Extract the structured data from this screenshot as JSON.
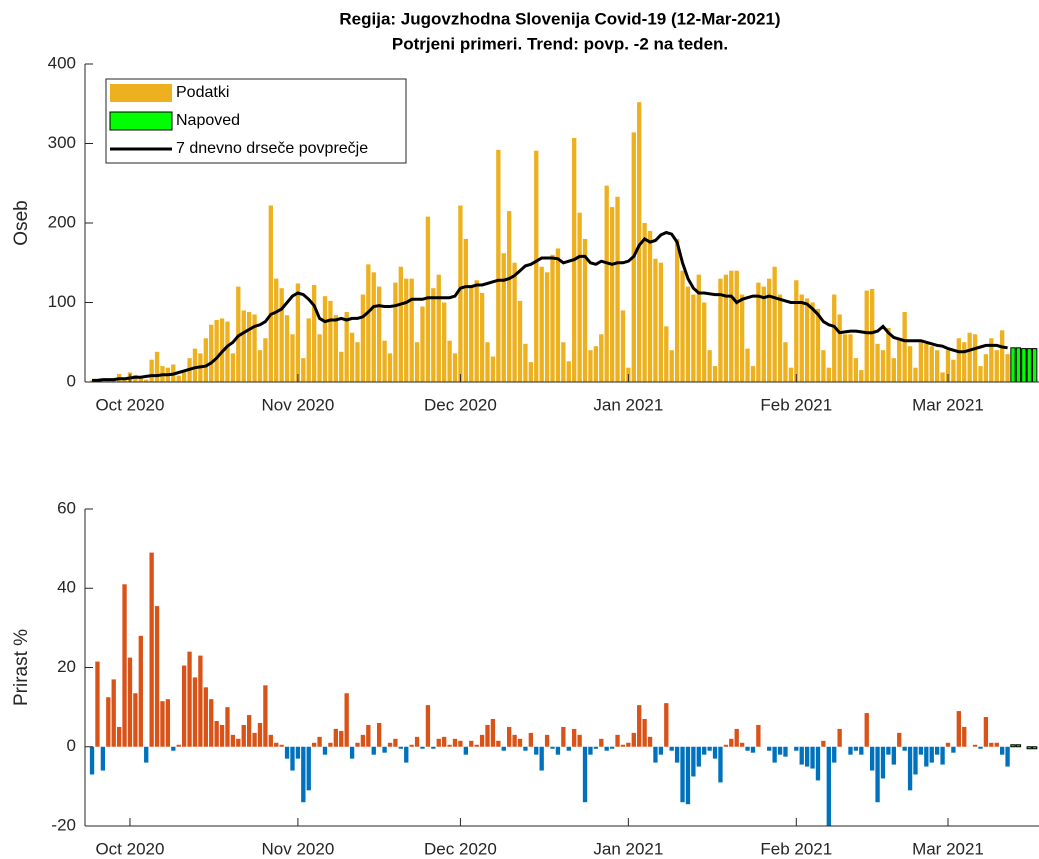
{
  "chart_data": [
    {
      "type": "bar",
      "title": "Regija: Jugovzhodna Slovenija Covid-19 (12-Mar-2021)",
      "subtitle": "Potrjeni primeri. Trend: povp. -2 na teden.",
      "y_label": "Oseb",
      "legend": "northwest",
      "xlim": [
        -8.3,
        167.8
      ],
      "xticks": [
        {
          "value": 0,
          "label": "Oct 2020"
        },
        {
          "value": 31,
          "label": "Nov 2020"
        },
        {
          "value": 61,
          "label": "Dec 2020"
        },
        {
          "value": 92,
          "label": "Jan 2021"
        },
        {
          "value": 123,
          "label": "Feb 2021"
        },
        {
          "value": 151,
          "label": "Mar 2021"
        }
      ],
      "ylim": [
        0,
        400
      ],
      "yticks": [
        0,
        100,
        200,
        300,
        400
      ],
      "x": [
        -7,
        -6,
        -5,
        -4,
        -3,
        -2,
        -1,
        0,
        1,
        2,
        3,
        4,
        5,
        6,
        7,
        8,
        9,
        10,
        11,
        12,
        13,
        14,
        15,
        16,
        17,
        18,
        19,
        20,
        21,
        22,
        23,
        24,
        25,
        26,
        27,
        28,
        29,
        30,
        31,
        32,
        33,
        34,
        35,
        36,
        37,
        38,
        39,
        40,
        41,
        42,
        43,
        44,
        45,
        46,
        47,
        48,
        49,
        50,
        51,
        52,
        53,
        54,
        55,
        56,
        57,
        58,
        59,
        60,
        61,
        62,
        63,
        64,
        65,
        66,
        67,
        68,
        69,
        70,
        71,
        72,
        73,
        74,
        75,
        76,
        77,
        78,
        79,
        80,
        81,
        82,
        83,
        84,
        85,
        86,
        87,
        88,
        89,
        90,
        91,
        92,
        93,
        94,
        95,
        96,
        97,
        98,
        99,
        100,
        101,
        102,
        103,
        104,
        105,
        106,
        107,
        108,
        109,
        110,
        111,
        112,
        113,
        114,
        115,
        116,
        117,
        118,
        119,
        120,
        121,
        122,
        123,
        124,
        125,
        126,
        127,
        128,
        129,
        130,
        131,
        132,
        133,
        134,
        135,
        136,
        137,
        138,
        139,
        140,
        141,
        142,
        143,
        144,
        145,
        146,
        147,
        148,
        149,
        150,
        151,
        152,
        153,
        154,
        155,
        156,
        157,
        158,
        159,
        160,
        161,
        162
      ],
      "series": [
        {
          "name": "Podatki",
          "type": "bar",
          "color": "#edb120",
          "values": [
            2,
            3,
            1,
            2,
            4,
            10,
            5,
            12,
            9,
            6,
            3,
            28,
            38,
            20,
            18,
            22,
            8,
            14,
            30,
            42,
            36,
            55,
            72,
            78,
            80,
            76,
            36,
            120,
            90,
            88,
            85,
            40,
            55,
            222,
            130,
            118,
            84,
            60,
            124,
            30,
            80,
            122,
            60,
            108,
            102,
            84,
            38,
            88,
            62,
            50,
            110,
            148,
            138,
            120,
            52,
            36,
            125,
            145,
            130,
            130,
            50,
            95,
            208,
            118,
            135,
            100,
            52,
            36,
            222,
            180,
            120,
            128,
            112,
            50,
            32,
            292,
            162,
            215,
            150,
            102,
            48,
            25,
            291,
            145,
            138,
            160,
            168,
            50,
            26,
            307,
            213,
            180,
            40,
            45,
            60,
            247,
            220,
            233,
            90,
            18,
            314,
            352,
            200,
            190,
            155,
            150,
            70,
            40,
            180,
            140,
            120,
            110,
            135,
            100,
            40,
            20,
            130,
            135,
            140,
            140,
            110,
            42,
            20,
            125,
            120,
            130,
            145,
            110,
            50,
            18,
            128,
            110,
            105,
            100,
            92,
            40,
            18,
            110,
            85,
            60,
            60,
            30,
            15,
            115,
            117,
            48,
            40,
            68,
            30,
            55,
            88,
            45,
            18,
            50,
            48,
            45,
            40,
            12,
            40,
            28,
            55,
            50,
            62,
            60,
            20,
            35,
            55,
            40,
            65,
            35
          ]
        },
        {
          "name": "Napoved",
          "type": "bar",
          "color": "#00ff00",
          "x": [
            163,
            164,
            165,
            166,
            167
          ],
          "values": [
            43,
            43,
            42,
            42,
            42
          ]
        },
        {
          "name": "7 dnevno drseče povprečje",
          "type": "line",
          "color": "#000000",
          "values": [
            2,
            2,
            3,
            3,
            3,
            4,
            4,
            5,
            6,
            6,
            7,
            8,
            8,
            9,
            9,
            10,
            12,
            14,
            16,
            18,
            19,
            20,
            24,
            30,
            38,
            45,
            50,
            58,
            62,
            66,
            70,
            72,
            76,
            85,
            88,
            92,
            100,
            108,
            112,
            110,
            104,
            96,
            80,
            76,
            78,
            78,
            80,
            78,
            80,
            80,
            82,
            88,
            95,
            96,
            95,
            95,
            96,
            98,
            100,
            104,
            104,
            104,
            106,
            106,
            106,
            106,
            106,
            108,
            118,
            120,
            120,
            122,
            122,
            124,
            126,
            128,
            128,
            130,
            134,
            140,
            146,
            148,
            152,
            156,
            156,
            156,
            155,
            150,
            152,
            154,
            158,
            158,
            150,
            148,
            152,
            150,
            148,
            150,
            150,
            152,
            158,
            172,
            180,
            176,
            178,
            185,
            188,
            186,
            176,
            150,
            130,
            118,
            112,
            112,
            111,
            110,
            110,
            108,
            108,
            100,
            104,
            106,
            108,
            108,
            106,
            108,
            106,
            104,
            102,
            100,
            100,
            100,
            98,
            92,
            85,
            76,
            72,
            70,
            62,
            63,
            64,
            64,
            63,
            62,
            62,
            64,
            70,
            62,
            56,
            54,
            52,
            52,
            52,
            52,
            50,
            48,
            46,
            45,
            42,
            40,
            38,
            38,
            40,
            42,
            44,
            46,
            46,
            46,
            44,
            43
          ]
        }
      ]
    },
    {
      "type": "bar",
      "y_label": "Prirast %",
      "xlim": [
        -8.3,
        167.8
      ],
      "xticks": [
        {
          "value": 0,
          "label": "Oct 2020"
        },
        {
          "value": 31,
          "label": "Nov 2020"
        },
        {
          "value": 61,
          "label": "Dec 2020"
        },
        {
          "value": 92,
          "label": "Jan 2021"
        },
        {
          "value": 123,
          "label": "Feb 2021"
        },
        {
          "value": 151,
          "label": "Mar 2021"
        }
      ],
      "ylim": [
        -20,
        60
      ],
      "yticks": [
        -20,
        0,
        20,
        40,
        60
      ],
      "x": [
        -7,
        -6,
        -5,
        -4,
        -3,
        -2,
        -1,
        0,
        1,
        2,
        3,
        4,
        5,
        6,
        7,
        8,
        9,
        10,
        11,
        12,
        13,
        14,
        15,
        16,
        17,
        18,
        19,
        20,
        21,
        22,
        23,
        24,
        25,
        26,
        27,
        28,
        29,
        30,
        31,
        32,
        33,
        34,
        35,
        36,
        37,
        38,
        39,
        40,
        41,
        42,
        43,
        44,
        45,
        46,
        47,
        48,
        49,
        50,
        51,
        52,
        53,
        54,
        55,
        56,
        57,
        58,
        59,
        60,
        61,
        62,
        63,
        64,
        65,
        66,
        67,
        68,
        69,
        70,
        71,
        72,
        73,
        74,
        75,
        76,
        77,
        78,
        79,
        80,
        81,
        82,
        83,
        84,
        85,
        86,
        87,
        88,
        89,
        90,
        91,
        92,
        93,
        94,
        95,
        96,
        97,
        98,
        99,
        100,
        101,
        102,
        103,
        104,
        105,
        106,
        107,
        108,
        109,
        110,
        111,
        112,
        113,
        114,
        115,
        116,
        117,
        118,
        119,
        120,
        121,
        122,
        123,
        124,
        125,
        126,
        127,
        128,
        129,
        130,
        131,
        132,
        133,
        134,
        135,
        136,
        137,
        138,
        139,
        140,
        141,
        142,
        143,
        144,
        145,
        146,
        147,
        148,
        149,
        150,
        151,
        152,
        153,
        154,
        155,
        156,
        157,
        158,
        159,
        160,
        161,
        162
      ],
      "series": [
        {
          "type": "bar",
          "positive_color": "#d95319",
          "negative_color": "#0072bd",
          "values": [
            -7,
            21.5,
            -6,
            12.5,
            17,
            5,
            41,
            22.5,
            13.5,
            28,
            -4,
            49,
            35.5,
            11.5,
            12,
            -1,
            0.5,
            20.5,
            24,
            17.5,
            23,
            15,
            12,
            6.5,
            5.5,
            10,
            3,
            2,
            5.5,
            8,
            3.5,
            6,
            15.5,
            3,
            1,
            0.5,
            -3,
            -6,
            -3,
            -14,
            -11,
            1,
            2.5,
            -2,
            1,
            4.5,
            4,
            13.5,
            -3,
            1,
            3,
            5.5,
            -2,
            6,
            -1.5,
            1,
            2,
            -0.5,
            -4,
            0.5,
            2.5,
            -0.5,
            10.5,
            -0.5,
            2,
            2.5,
            0.5,
            2,
            1.5,
            -2,
            1.5,
            0.5,
            3,
            5.5,
            7,
            1.5,
            -1,
            5,
            3,
            2,
            -1,
            3.5,
            -2,
            -6,
            3,
            -0.5,
            -2,
            5,
            -1,
            4.5,
            3,
            -14,
            -2,
            -0.5,
            2,
            -1,
            -0.5,
            3,
            0.5,
            1,
            3.5,
            10.5,
            7,
            2.5,
            -4,
            -2,
            11,
            -1,
            -4,
            -14,
            -14.5,
            -7.5,
            -5,
            -2,
            -1,
            -3,
            -9,
            0.5,
            2,
            4.5,
            1,
            -1,
            -1.5,
            5.5,
            0,
            -1,
            -4,
            -2,
            -2.5,
            0,
            -1,
            -4.5,
            -5,
            -5.5,
            -8.5,
            1.5,
            -20,
            -4,
            4.5,
            0,
            -2,
            -1,
            -2,
            8.5,
            -6,
            -14,
            -8,
            -2,
            -4.5,
            3.5,
            -1,
            -11,
            -7,
            -2,
            -5,
            -4,
            -2,
            -4.5,
            1,
            -1.5,
            9,
            5,
            0,
            0.5,
            -0.5,
            7.5,
            1,
            1,
            -2,
            -5
          ]
        },
        {
          "type": "bar",
          "color": "#00ff00",
          "x": [
            163,
            164,
            165,
            166,
            167
          ],
          "values": [
            0.5,
            0.5,
            0,
            -0.5,
            -0.5
          ]
        }
      ]
    }
  ]
}
